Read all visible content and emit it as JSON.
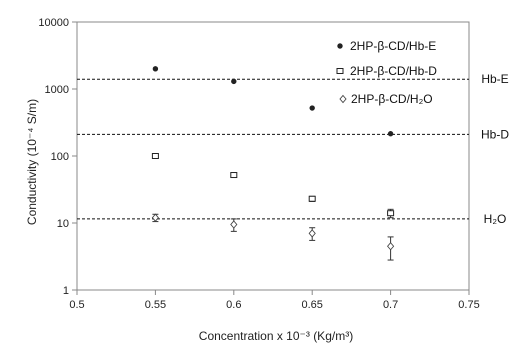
{
  "chart_data": {
    "type": "scatter",
    "title": "",
    "xlabel": "Concentration x 10⁻³ (Kg/m³)",
    "ylabel": "Conductivity (10⁻⁴ S/m)",
    "y_scale": "log",
    "xlim": [
      0.5,
      0.75
    ],
    "ylim": [
      1,
      10000
    ],
    "x_ticks": [
      0.5,
      0.55,
      0.6,
      0.65,
      0.7,
      0.75
    ],
    "x_tick_labels": [
      "0.5",
      "0.55",
      "0.6",
      "0.65",
      "0.7",
      "0.75"
    ],
    "y_ticks": [
      1,
      10,
      100,
      1000,
      10000
    ],
    "y_tick_labels": [
      "1",
      "10",
      "100",
      "1000",
      "10000"
    ],
    "grid": false,
    "legend_position": "top-right",
    "series": [
      {
        "name": "2HP-β-CD/Hb-E",
        "marker": "circle",
        "color": "#222222",
        "x": [
          0.55,
          0.6,
          0.65,
          0.7
        ],
        "y": [
          2000,
          1300,
          520,
          215
        ],
        "err": [
          0,
          0,
          0,
          0
        ]
      },
      {
        "name": "2HP-β-CD/Hb-D",
        "marker": "square",
        "color": "#222222",
        "x": [
          0.55,
          0.6,
          0.65,
          0.7
        ],
        "y": [
          100,
          52,
          23,
          14
        ],
        "err": [
          4,
          3,
          2,
          2
        ]
      },
      {
        "name": "2HP-β-CD/H₂O",
        "marker": "diamond",
        "color": "#222222",
        "x": [
          0.55,
          0.6,
          0.65,
          0.7
        ],
        "y": [
          12,
          9.5,
          7,
          4.5
        ],
        "err": [
          1.5,
          2.0,
          1.5,
          1.7
        ]
      }
    ],
    "reference_lines": [
      {
        "label": "Hb-E",
        "y": 1400
      },
      {
        "label": "Hb-D",
        "y": 210
      },
      {
        "label": "H₂O",
        "y": 11.5
      }
    ]
  }
}
